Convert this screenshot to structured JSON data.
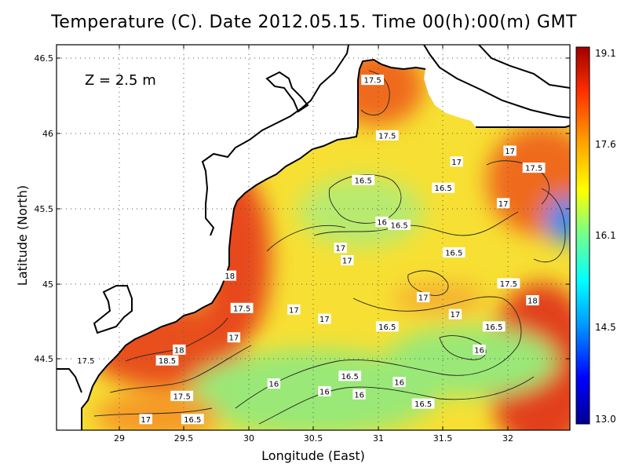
{
  "title": "Temperature (C). Date 2012.05.15. Time 00(h):00(m) GMT",
  "depth_label": "Z  =  2.5  m",
  "xlabel": "Longitude (East)",
  "ylabel": "Latitude (North)",
  "x_ticks": [
    "29",
    "29.5",
    "30",
    "30.5",
    "31",
    "31.5",
    "32"
  ],
  "y_ticks": [
    "44.5",
    "45",
    "45.5",
    "46",
    "46.5"
  ],
  "colorbar_ticks": [
    "19.1",
    "17.6",
    "16.1",
    "14.5",
    "13.0"
  ],
  "colors": {
    "land": "#ffffff",
    "coastline": "#000000",
    "contour": "#222222",
    "gridline": "#555555"
  },
  "chart_data": {
    "type": "heatmap",
    "variable": "Temperature (C)",
    "xlim": [
      28.6,
      32.45
    ],
    "ylim": [
      44.05,
      46.55
    ],
    "colorbar_range": [
      13.0,
      19.1
    ],
    "colorbar_colors": [
      "#000090",
      "#0000ff",
      "#00a0ff",
      "#00ffff",
      "#70ff90",
      "#ffff00",
      "#ffa000",
      "#ff3000",
      "#a00000"
    ],
    "contour_labels": [
      {
        "text": "17.5",
        "x": 30.97,
        "y": 46.32
      },
      {
        "text": "17.5",
        "x": 31.08,
        "y": 45.96
      },
      {
        "text": "17",
        "x": 31.6,
        "y": 45.79
      },
      {
        "text": "17",
        "x": 32.0,
        "y": 45.86
      },
      {
        "text": "17.5",
        "x": 32.18,
        "y": 45.75
      },
      {
        "text": "16.5",
        "x": 30.9,
        "y": 45.67
      },
      {
        "text": "16.5",
        "x": 31.5,
        "y": 45.62
      },
      {
        "text": "17",
        "x": 31.95,
        "y": 45.52
      },
      {
        "text": "16",
        "x": 31.04,
        "y": 45.4
      },
      {
        "text": "16.5",
        "x": 31.17,
        "y": 45.38
      },
      {
        "text": "17",
        "x": 30.73,
        "y": 45.23
      },
      {
        "text": "16.5",
        "x": 31.58,
        "y": 45.2
      },
      {
        "text": "17",
        "x": 30.78,
        "y": 45.15
      },
      {
        "text": "18",
        "x": 29.9,
        "y": 45.05
      },
      {
        "text": "17.5",
        "x": 31.99,
        "y": 45.0
      },
      {
        "text": "17",
        "x": 31.35,
        "y": 44.91
      },
      {
        "text": "18",
        "x": 32.17,
        "y": 44.89
      },
      {
        "text": "17.5",
        "x": 29.99,
        "y": 44.84
      },
      {
        "text": "17",
        "x": 30.38,
        "y": 44.83
      },
      {
        "text": "17",
        "x": 30.61,
        "y": 44.77
      },
      {
        "text": "17",
        "x": 31.59,
        "y": 44.8
      },
      {
        "text": "16.5",
        "x": 31.08,
        "y": 44.72
      },
      {
        "text": "16.5",
        "x": 31.88,
        "y": 44.72
      },
      {
        "text": "17",
        "x": 29.93,
        "y": 44.65
      },
      {
        "text": "16",
        "x": 31.77,
        "y": 44.57
      },
      {
        "text": "18",
        "x": 29.52,
        "y": 44.57
      },
      {
        "text": "17.5",
        "x": 28.82,
        "y": 44.5
      },
      {
        "text": "18.5",
        "x": 29.43,
        "y": 44.5
      },
      {
        "text": "16.5",
        "x": 30.8,
        "y": 44.4
      },
      {
        "text": "16",
        "x": 30.23,
        "y": 44.35
      },
      {
        "text": "16",
        "x": 31.17,
        "y": 44.36
      },
      {
        "text": "16",
        "x": 30.61,
        "y": 44.3
      },
      {
        "text": "16",
        "x": 30.87,
        "y": 44.28
      },
      {
        "text": "17.5",
        "x": 29.54,
        "y": 44.27
      },
      {
        "text": "16.5",
        "x": 31.35,
        "y": 44.22
      },
      {
        "text": "17",
        "x": 29.27,
        "y": 44.12
      },
      {
        "text": "16.5",
        "x": 29.62,
        "y": 44.12
      }
    ]
  }
}
